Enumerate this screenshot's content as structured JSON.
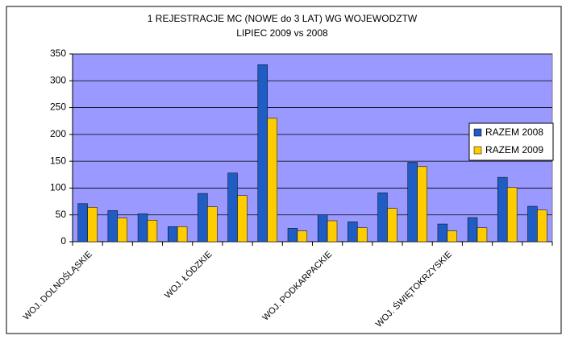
{
  "chart_data": {
    "type": "bar",
    "title": "1 REJESTRACJE MC (NOWE do 3 LAT) WG WOJEWODZTW",
    "subtitle": "LIPIEC 2009 vs 2008",
    "categories": [
      "WOJ. DOLNOŚLĄSKIE",
      null,
      null,
      null,
      "WOJ. ŁÓDZKIE",
      null,
      null,
      null,
      "WOJ. PODKARPACKIE",
      null,
      null,
      null,
      "WOJ. ŚWIĘTOKRZYSKIE",
      null,
      null,
      null
    ],
    "series": [
      {
        "name": "RAZEM 2008",
        "color": "#1f5cc4",
        "values": [
          71,
          58,
          52,
          28,
          90,
          128,
          330,
          25,
          50,
          37,
          91,
          148,
          33,
          45,
          120,
          66
        ]
      },
      {
        "name": "RAZEM 2009",
        "color": "#ffcc00",
        "values": [
          64,
          44,
          40,
          28,
          65,
          86,
          230,
          20,
          39,
          26,
          62,
          140,
          20,
          26,
          101,
          59
        ]
      }
    ],
    "ylim": [
      0,
      350
    ],
    "yticks": [
      0,
      50,
      100,
      150,
      200,
      250,
      300,
      350
    ],
    "grid": true,
    "legend": "right"
  }
}
